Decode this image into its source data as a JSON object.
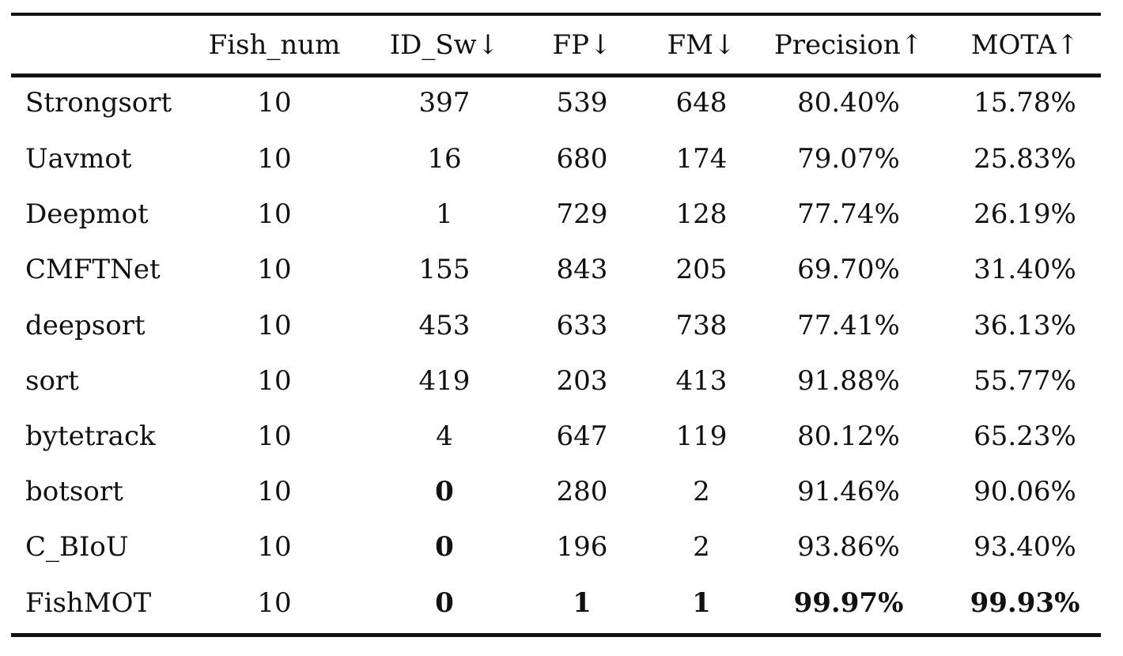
{
  "table": {
    "columns": [
      "",
      "Fish_num",
      "ID_Sw↓",
      "FP↓",
      "FM↓",
      "Precision↑",
      "MOTA↑"
    ],
    "rows": [
      {
        "method": "Strongsort",
        "fish_num": "10",
        "id_sw": "397",
        "fp": "539",
        "fm": "648",
        "precision": "80.40%",
        "mota": "15.78%",
        "bold": []
      },
      {
        "method": "Uavmot",
        "fish_num": "10",
        "id_sw": "16",
        "fp": "680",
        "fm": "174",
        "precision": "79.07%",
        "mota": "25.83%",
        "bold": []
      },
      {
        "method": "Deepmot",
        "fish_num": "10",
        "id_sw": "1",
        "fp": "729",
        "fm": "128",
        "precision": "77.74%",
        "mota": "26.19%",
        "bold": []
      },
      {
        "method": "CMFTNet",
        "fish_num": "10",
        "id_sw": "155",
        "fp": "843",
        "fm": "205",
        "precision": "69.70%",
        "mota": "31.40%",
        "bold": []
      },
      {
        "method": "deepsort",
        "fish_num": "10",
        "id_sw": "453",
        "fp": "633",
        "fm": "738",
        "precision": "77.41%",
        "mota": "36.13%",
        "bold": []
      },
      {
        "method": "sort",
        "fish_num": "10",
        "id_sw": "419",
        "fp": "203",
        "fm": "413",
        "precision": "91.88%",
        "mota": "55.77%",
        "bold": []
      },
      {
        "method": "bytetrack",
        "fish_num": "10",
        "id_sw": "4",
        "fp": "647",
        "fm": "119",
        "precision": "80.12%",
        "mota": "65.23%",
        "bold": []
      },
      {
        "method": "botsort",
        "fish_num": "10",
        "id_sw": "0",
        "fp": "280",
        "fm": "2",
        "precision": "91.46%",
        "mota": "90.06%",
        "bold": [
          "id_sw"
        ]
      },
      {
        "method": "C_BIoU",
        "fish_num": "10",
        "id_sw": "0",
        "fp": "196",
        "fm": "2",
        "precision": "93.86%",
        "mota": "93.40%",
        "bold": [
          "id_sw"
        ]
      },
      {
        "method": "FishMOT",
        "fish_num": "10",
        "id_sw": "0",
        "fp": "1",
        "fm": "1",
        "precision": "99.97%",
        "mota": "99.93%",
        "bold": [
          "id_sw",
          "fp",
          "fm",
          "precision",
          "mota"
        ]
      }
    ]
  }
}
